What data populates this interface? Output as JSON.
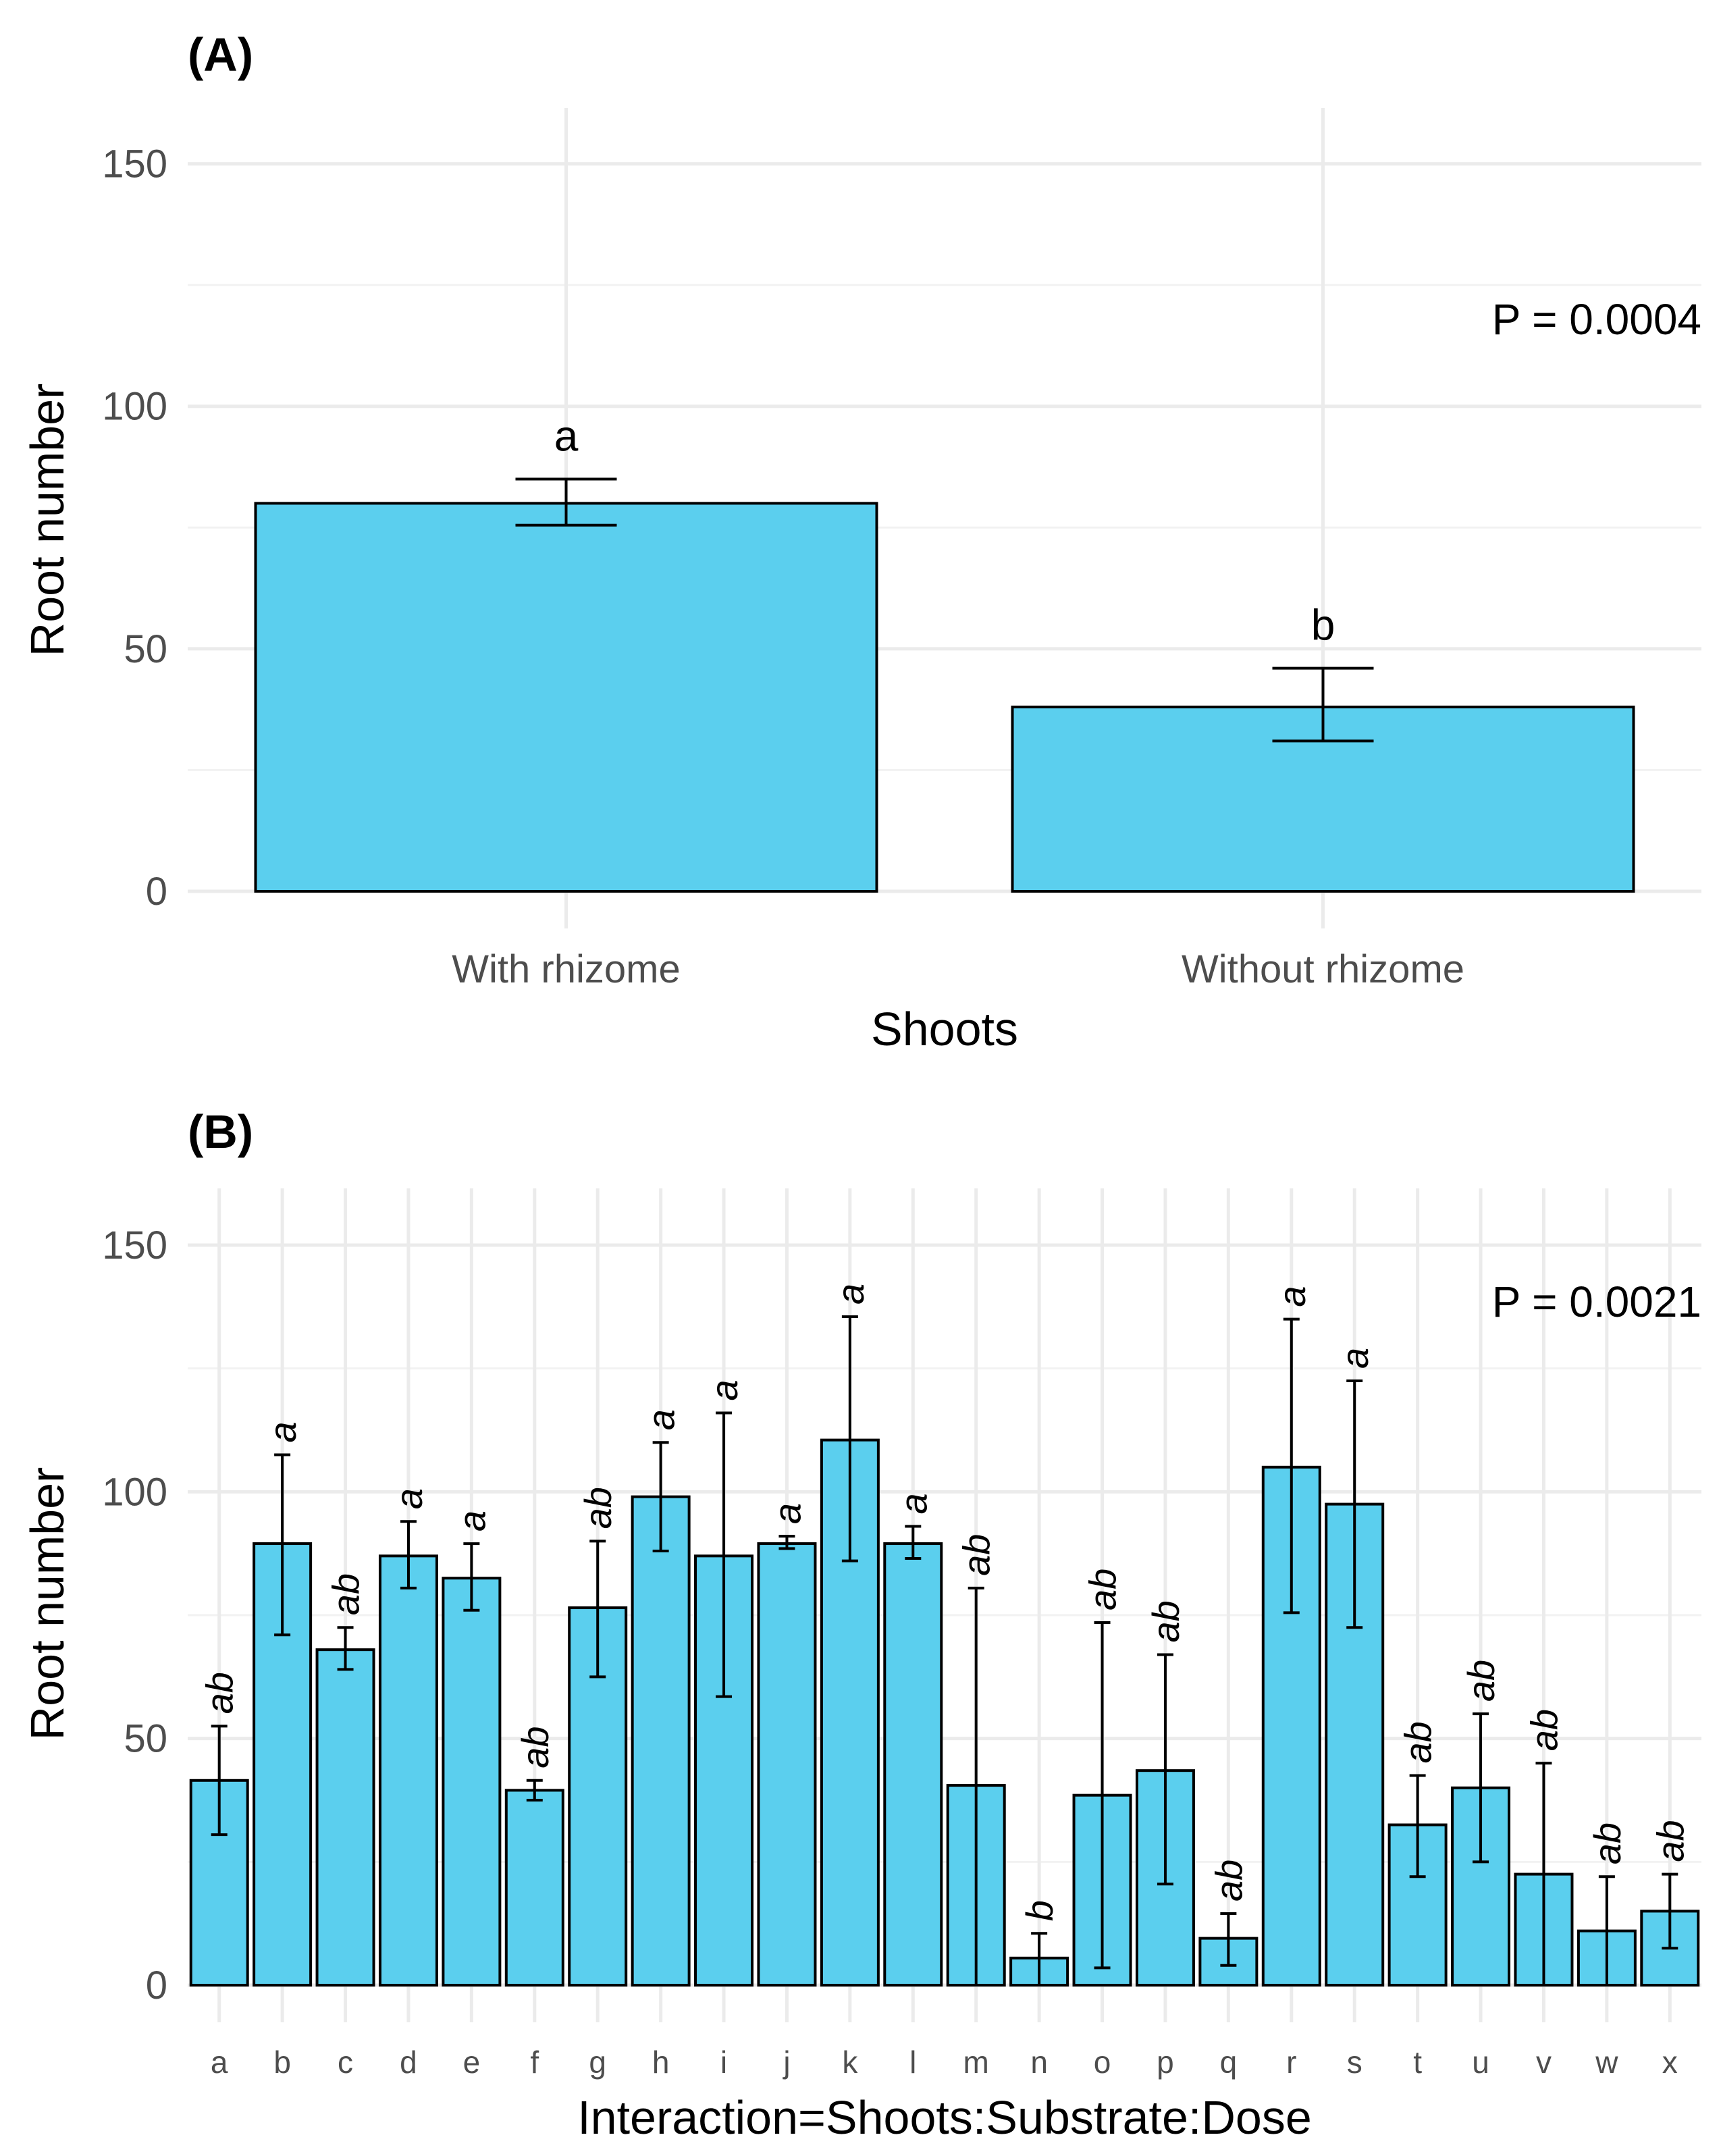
{
  "chart_data": [
    {
      "panel": "(A)",
      "type": "bar",
      "categories": [
        "With rhizome",
        "Without rhizome"
      ],
      "values": [
        80,
        38
      ],
      "error": [
        [
          75.5,
          85
        ],
        [
          31,
          46
        ]
      ],
      "significance": [
        "a",
        "b"
      ],
      "xlabel": "Shoots",
      "ylabel": "Root number",
      "ylim": [
        0,
        150
      ],
      "yticks": [
        0,
        50,
        100,
        150
      ],
      "annotation": "P = 0.0004",
      "grid": true,
      "bar_color": "#5bcfee"
    },
    {
      "panel": "(B)",
      "type": "bar",
      "categories": [
        "a",
        "b",
        "c",
        "d",
        "e",
        "f",
        "g",
        "h",
        "i",
        "j",
        "k",
        "l",
        "m",
        "n",
        "o",
        "p",
        "q",
        "r",
        "s",
        "t",
        "u",
        "v",
        "w",
        "x"
      ],
      "values": [
        41.5,
        89.5,
        68,
        87,
        82.5,
        39.5,
        76.5,
        99,
        87,
        89.5,
        110.5,
        89.5,
        40.5,
        5.5,
        38.5,
        43.5,
        9.5,
        105,
        97.5,
        32.5,
        40,
        22.5,
        11,
        15
      ],
      "error": [
        [
          30.5,
          52.5
        ],
        [
          71,
          107.5
        ],
        [
          64,
          72.5
        ],
        [
          80.5,
          94
        ],
        [
          76,
          89.5
        ],
        [
          37.5,
          41.5
        ],
        [
          62.5,
          90
        ],
        [
          88,
          110
        ],
        [
          58.5,
          116
        ],
        [
          88.5,
          91
        ],
        [
          86,
          135.5
        ],
        [
          86.5,
          93
        ],
        [
          0,
          80.5
        ],
        [
          0,
          10.5
        ],
        [
          3.5,
          73.5
        ],
        [
          20.5,
          67
        ],
        [
          4,
          14.5
        ],
        [
          75.5,
          135
        ],
        [
          72.5,
          122.5
        ],
        [
          22,
          42.5
        ],
        [
          25,
          55
        ],
        [
          0,
          45
        ],
        [
          0,
          22
        ],
        [
          7.5,
          22.5
        ]
      ],
      "significance": [
        "ab",
        "a",
        "ab",
        "a",
        "a",
        "ab",
        "ab",
        "a",
        "a",
        "a",
        "a",
        "a",
        "ab",
        "b",
        "ab",
        "ab",
        "ab",
        "a",
        "a",
        "ab",
        "ab",
        "ab",
        "ab",
        "ab"
      ],
      "xlabel": "Interaction=Shoots:Substrate:Dose",
      "ylabel": "Root number",
      "ylim": [
        0,
        150
      ],
      "yticks": [
        0,
        50,
        100,
        150
      ],
      "annotation": "P = 0.0021",
      "grid": true,
      "bar_color": "#5bcfee"
    }
  ]
}
